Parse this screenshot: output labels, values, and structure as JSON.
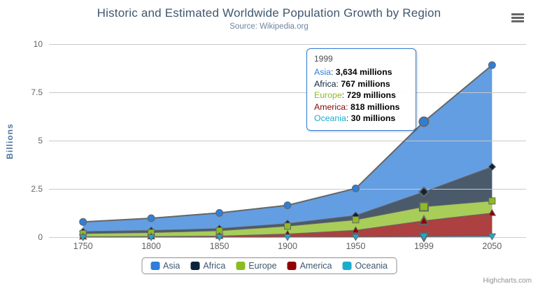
{
  "title": "Historic and Estimated Worldwide Population Growth by Region",
  "subtitle": "Source: Wikipedia.org",
  "credits": "Highcharts.com",
  "chart_data": {
    "type": "area",
    "stacking": "normal",
    "title": "Historic and Estimated Worldwide Population Growth by Region",
    "subtitle": "Source: Wikipedia.org",
    "categories": [
      "1750",
      "1800",
      "1850",
      "1900",
      "1950",
      "1999",
      "2050"
    ],
    "xlabel": "",
    "ylabel": "Billions",
    "yticks": [
      0,
      2.5,
      5,
      7.5,
      10
    ],
    "ylim": [
      0,
      10
    ],
    "values_unit": "millions",
    "unit_divisor": 1000,
    "grid": true,
    "legend_position": "bottom",
    "line_color": "#666666",
    "fill_opacity": 0.75,
    "axis_line_color": "#c0d0e0",
    "grid_line_color": "#c9c9c9",
    "series": [
      {
        "name": "Asia",
        "color": "#2f7ed8",
        "marker": "circle",
        "values": [
          502,
          635,
          809,
          947,
          1402,
          3634,
          5268
        ]
      },
      {
        "name": "Africa",
        "color": "#0d233a",
        "marker": "diamond",
        "values": [
          106,
          107,
          111,
          133,
          221,
          767,
          1766
        ]
      },
      {
        "name": "Europe",
        "color": "#8bbc21",
        "marker": "square",
        "values": [
          163,
          203,
          276,
          408,
          547,
          729,
          628
        ]
      },
      {
        "name": "America",
        "color": "#910000",
        "marker": "triangle",
        "values": [
          18,
          31,
          54,
          156,
          339,
          818,
          1201
        ]
      },
      {
        "name": "Oceania",
        "color": "#1aadce",
        "marker": "triangle-down",
        "values": [
          2,
          2,
          2,
          6,
          13,
          30,
          46
        ]
      }
    ]
  },
  "hover": {
    "series": "Asia",
    "category": "1999"
  },
  "tooltip": {
    "header": "1999",
    "rows": [
      {
        "name": "Asia",
        "color": "#2f7ed8",
        "value": "3,634 millions"
      },
      {
        "name": "Africa",
        "color": "#0d233a",
        "value": "767 millions"
      },
      {
        "name": "Europe",
        "color": "#8bbc21",
        "value": "729 millions"
      },
      {
        "name": "America",
        "color": "#910000",
        "value": "818 millions"
      },
      {
        "name": "Oceania",
        "color": "#1aadce",
        "value": "30 millions"
      }
    ]
  },
  "legend": {
    "items": [
      {
        "label": "Asia",
        "color": "#2f7ed8"
      },
      {
        "label": "Africa",
        "color": "#0d233a"
      },
      {
        "label": "Europe",
        "color": "#8bbc21"
      },
      {
        "label": "America",
        "color": "#910000"
      },
      {
        "label": "Oceania",
        "color": "#1aadce"
      }
    ]
  }
}
